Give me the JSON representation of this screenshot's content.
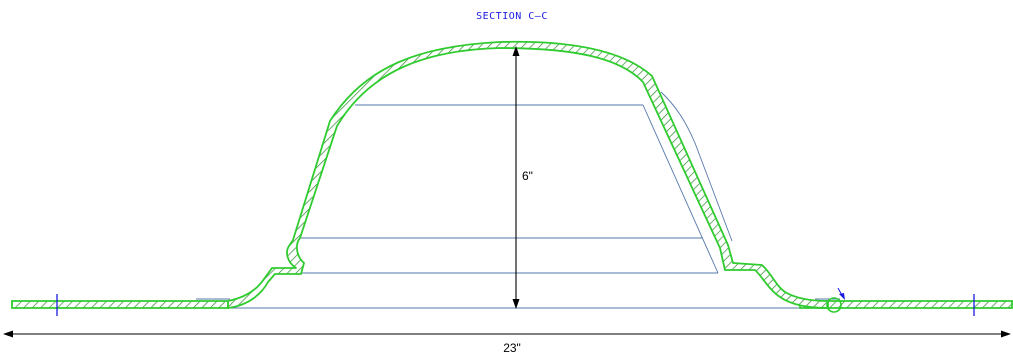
{
  "title": "SECTION C–C",
  "dimensions": {
    "height": "6\"",
    "width": "23\""
  },
  "colors": {
    "outline": "#2ecc2e",
    "hatch": "#2e8a2e",
    "construction": "#5577aa",
    "marker": "#1a1adf",
    "dimension": "#000000"
  }
}
